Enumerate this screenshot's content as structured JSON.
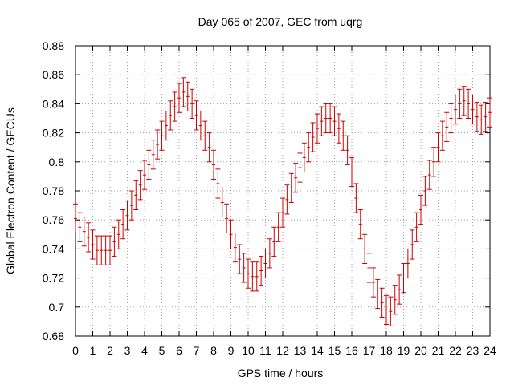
{
  "chart_data": {
    "type": "scatter",
    "title": "Day 065 of 2007, GEC from uqrg",
    "xlabel": "GPS time / hours",
    "ylabel": "Global Electron Content / GECUs",
    "xlim": [
      0,
      24
    ],
    "ylim": [
      0.68,
      0.88
    ],
    "grid": true,
    "color": "#cc0000",
    "error": 0.01,
    "x_ticks": [
      "0",
      "1",
      "2",
      "3",
      "4",
      "5",
      "6",
      "7",
      "8",
      "9",
      "10",
      "11",
      "12",
      "13",
      "14",
      "15",
      "16",
      "17",
      "18",
      "19",
      "20",
      "21",
      "22",
      "23",
      "24"
    ],
    "y_ticks": [
      "0.68",
      "0.7",
      "0.72",
      "0.74",
      "0.76",
      "0.78",
      "0.8",
      "0.82",
      "0.84",
      "0.86",
      "0.88"
    ],
    "series": [
      {
        "x": [
          0.0,
          0.25,
          0.5,
          0.75,
          1.0,
          1.25,
          1.5,
          1.75,
          2.0,
          2.25,
          2.5,
          2.75,
          3.0,
          3.25,
          3.5,
          3.75,
          4.0,
          4.25,
          4.5,
          4.75,
          5.0,
          5.25,
          5.5,
          5.75,
          6.0,
          6.25,
          6.5,
          6.75,
          7.0,
          7.25,
          7.5,
          7.75,
          8.0,
          8.25,
          8.5,
          8.75,
          9.0,
          9.25,
          9.5,
          9.75,
          10.0,
          10.25,
          10.5,
          10.75,
          11.0,
          11.25,
          11.5,
          11.75,
          12.0,
          12.25,
          12.5,
          12.75,
          13.0,
          13.25,
          13.5,
          13.75,
          14.0,
          14.25,
          14.5,
          14.75,
          15.0,
          15.25,
          15.5,
          15.75,
          16.0,
          16.25,
          16.5,
          16.75,
          17.0,
          17.25,
          17.5,
          17.75,
          18.0,
          18.25,
          18.5,
          18.75,
          19.0,
          19.25,
          19.5,
          19.75,
          20.0,
          20.25,
          20.5,
          20.75,
          21.0,
          21.25,
          21.5,
          21.75,
          22.0,
          22.25,
          22.5,
          22.75,
          23.0,
          23.25,
          23.5,
          23.75,
          24.0
        ],
        "y": [
          0.761,
          0.755,
          0.752,
          0.748,
          0.743,
          0.739,
          0.739,
          0.739,
          0.739,
          0.745,
          0.75,
          0.757,
          0.763,
          0.77,
          0.777,
          0.784,
          0.791,
          0.798,
          0.805,
          0.812,
          0.818,
          0.825,
          0.832,
          0.838,
          0.844,
          0.848,
          0.845,
          0.84,
          0.832,
          0.825,
          0.818,
          0.81,
          0.798,
          0.785,
          0.772,
          0.761,
          0.75,
          0.741,
          0.733,
          0.727,
          0.723,
          0.721,
          0.721,
          0.725,
          0.73,
          0.737,
          0.745,
          0.755,
          0.765,
          0.774,
          0.782,
          0.789,
          0.796,
          0.803,
          0.81,
          0.817,
          0.823,
          0.828,
          0.83,
          0.83,
          0.828,
          0.823,
          0.818,
          0.808,
          0.793,
          0.775,
          0.757,
          0.74,
          0.727,
          0.717,
          0.709,
          0.703,
          0.698,
          0.697,
          0.705,
          0.712,
          0.72,
          0.73,
          0.743,
          0.755,
          0.767,
          0.78,
          0.791,
          0.8,
          0.81,
          0.818,
          0.824,
          0.83,
          0.836,
          0.84,
          0.842,
          0.84,
          0.836,
          0.831,
          0.829,
          0.831,
          0.834
        ]
      }
    ]
  }
}
